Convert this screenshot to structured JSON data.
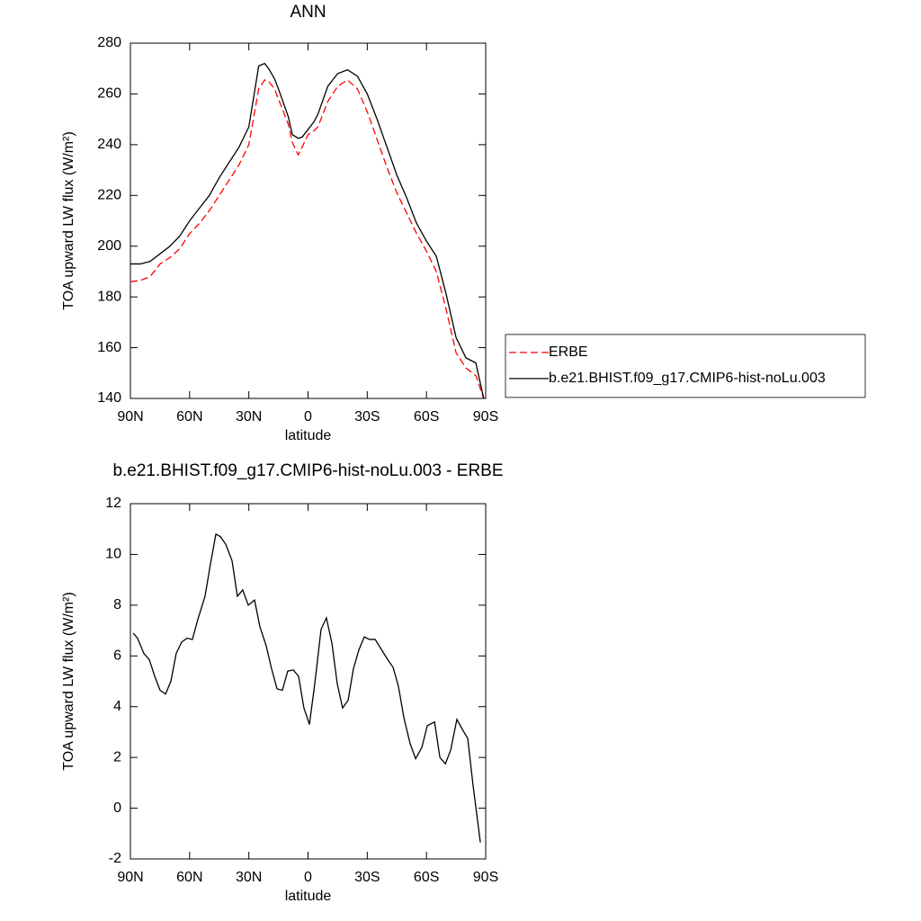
{
  "chart_data": [
    {
      "type": "line",
      "title": "ANN",
      "xlabel": "latitude",
      "ylabel": "TOA upward LW flux (W/m²)",
      "x": [
        90,
        85,
        80,
        75,
        70,
        65,
        60,
        55,
        50,
        45,
        40,
        35,
        30,
        25,
        22,
        20,
        17,
        15,
        10,
        8,
        5,
        3,
        0,
        -3,
        -5,
        -10,
        -15,
        -20,
        -25,
        -30,
        -35,
        -40,
        -45,
        -50,
        -55,
        -60,
        -65,
        -70,
        -75,
        -80,
        -85,
        -89
      ],
      "series": [
        {
          "name": "ERBE",
          "color": "#ff0000",
          "dash": true,
          "values": [
            186,
            186.5,
            188,
            193,
            195.5,
            199,
            205,
            209,
            214,
            220,
            226,
            232,
            240,
            262,
            265.5,
            265,
            262,
            258,
            248,
            241,
            236,
            239,
            244,
            245.5,
            247,
            257,
            263,
            265.5,
            262,
            253,
            242,
            231,
            221,
            213,
            205,
            198,
            190,
            175,
            158,
            152,
            149,
            140
          ]
        },
        {
          "name": "b.e21.BHIST.f09_g17.CMIP6-hist-noLu.003",
          "color": "#000000",
          "dash": false,
          "values": [
            193,
            193,
            194,
            197,
            200,
            204,
            210,
            215,
            220,
            227,
            233,
            239,
            247,
            271,
            272,
            270,
            266,
            262,
            251,
            244,
            242.5,
            243,
            246,
            249,
            252,
            263,
            268,
            269.5,
            267,
            260,
            250,
            239,
            228,
            219,
            209,
            202,
            196,
            181,
            164,
            156,
            154,
            140
          ]
        }
      ],
      "xlim": [
        90,
        -90
      ],
      "ylim": [
        140,
        280
      ],
      "xticks": [
        {
          "value": 90,
          "label": "90N"
        },
        {
          "value": 60,
          "label": "60N"
        },
        {
          "value": 30,
          "label": "30N"
        },
        0,
        {
          "value": -30,
          "label": "30S"
        },
        {
          "value": -60,
          "label": "60S"
        },
        {
          "value": -90,
          "label": "90S"
        }
      ],
      "yticks": [
        140,
        160,
        180,
        200,
        220,
        240,
        260,
        280
      ],
      "legend": "right"
    },
    {
      "type": "line",
      "title": "b.e21.BHIST.f09_g17.CMIP6-hist-noLu.003 - ERBE",
      "xlabel": "latitude",
      "ylabel": "TOA upward LW flux (W/m²)",
      "x": [
        88.6,
        86.4,
        83.2,
        80.4,
        77.7,
        75.0,
        72.2,
        69.5,
        66.8,
        64.0,
        61.3,
        58.6,
        55.8,
        52.2,
        49.5,
        46.7,
        44.4,
        41.7,
        38.5,
        35.8,
        33.1,
        30.3,
        27.1,
        24.4,
        21.2,
        18.5,
        15.7,
        13.0,
        10.3,
        7.5,
        4.8,
        2.1,
        -0.7,
        -3.4,
        -6.6,
        -9.3,
        -12.1,
        -14.8,
        -17.5,
        -20.3,
        -23.0,
        -25.8,
        -28.5,
        -31.2,
        -34.0,
        -37.2,
        -40.4,
        -43.1,
        -45.8,
        -48.6,
        -51.7,
        -54.5,
        -57.7,
        -60.4,
        -64.1,
        -66.8,
        -69.6,
        -72.3,
        -75.4,
        -78.2,
        -80.9,
        -83.6,
        -87.3
      ],
      "values": [
        6.9,
        6.7,
        6.1,
        5.85,
        5.2,
        4.65,
        4.5,
        5.0,
        6.1,
        6.55,
        6.7,
        6.65,
        7.45,
        8.35,
        9.6,
        10.8,
        10.7,
        10.4,
        9.75,
        8.35,
        8.6,
        8.0,
        8.2,
        7.15,
        6.4,
        5.5,
        4.7,
        4.65,
        5.4,
        5.45,
        5.2,
        3.95,
        3.3,
        4.9,
        7.05,
        7.5,
        6.5,
        4.9,
        3.95,
        4.25,
        5.5,
        6.25,
        6.75,
        6.65,
        6.65,
        6.25,
        5.85,
        5.55,
        4.8,
        3.55,
        2.55,
        1.95,
        2.4,
        3.25,
        3.4,
        2.0,
        1.75,
        2.3,
        3.5,
        3.1,
        2.75,
        0.9,
        -1.35
      ],
      "color": "#000000",
      "xlim": [
        90,
        -90
      ],
      "ylim": [
        -2,
        12
      ],
      "xticks": [
        {
          "value": 90,
          "label": "90N"
        },
        {
          "value": 60,
          "label": "60N"
        },
        {
          "value": 30,
          "label": "30N"
        },
        0,
        {
          "value": -30,
          "label": "30S"
        },
        {
          "value": -60,
          "label": "60S"
        },
        {
          "value": -90,
          "label": "90S"
        }
      ],
      "yticks": [
        -2,
        0,
        2,
        4,
        6,
        8,
        10,
        12
      ]
    }
  ]
}
